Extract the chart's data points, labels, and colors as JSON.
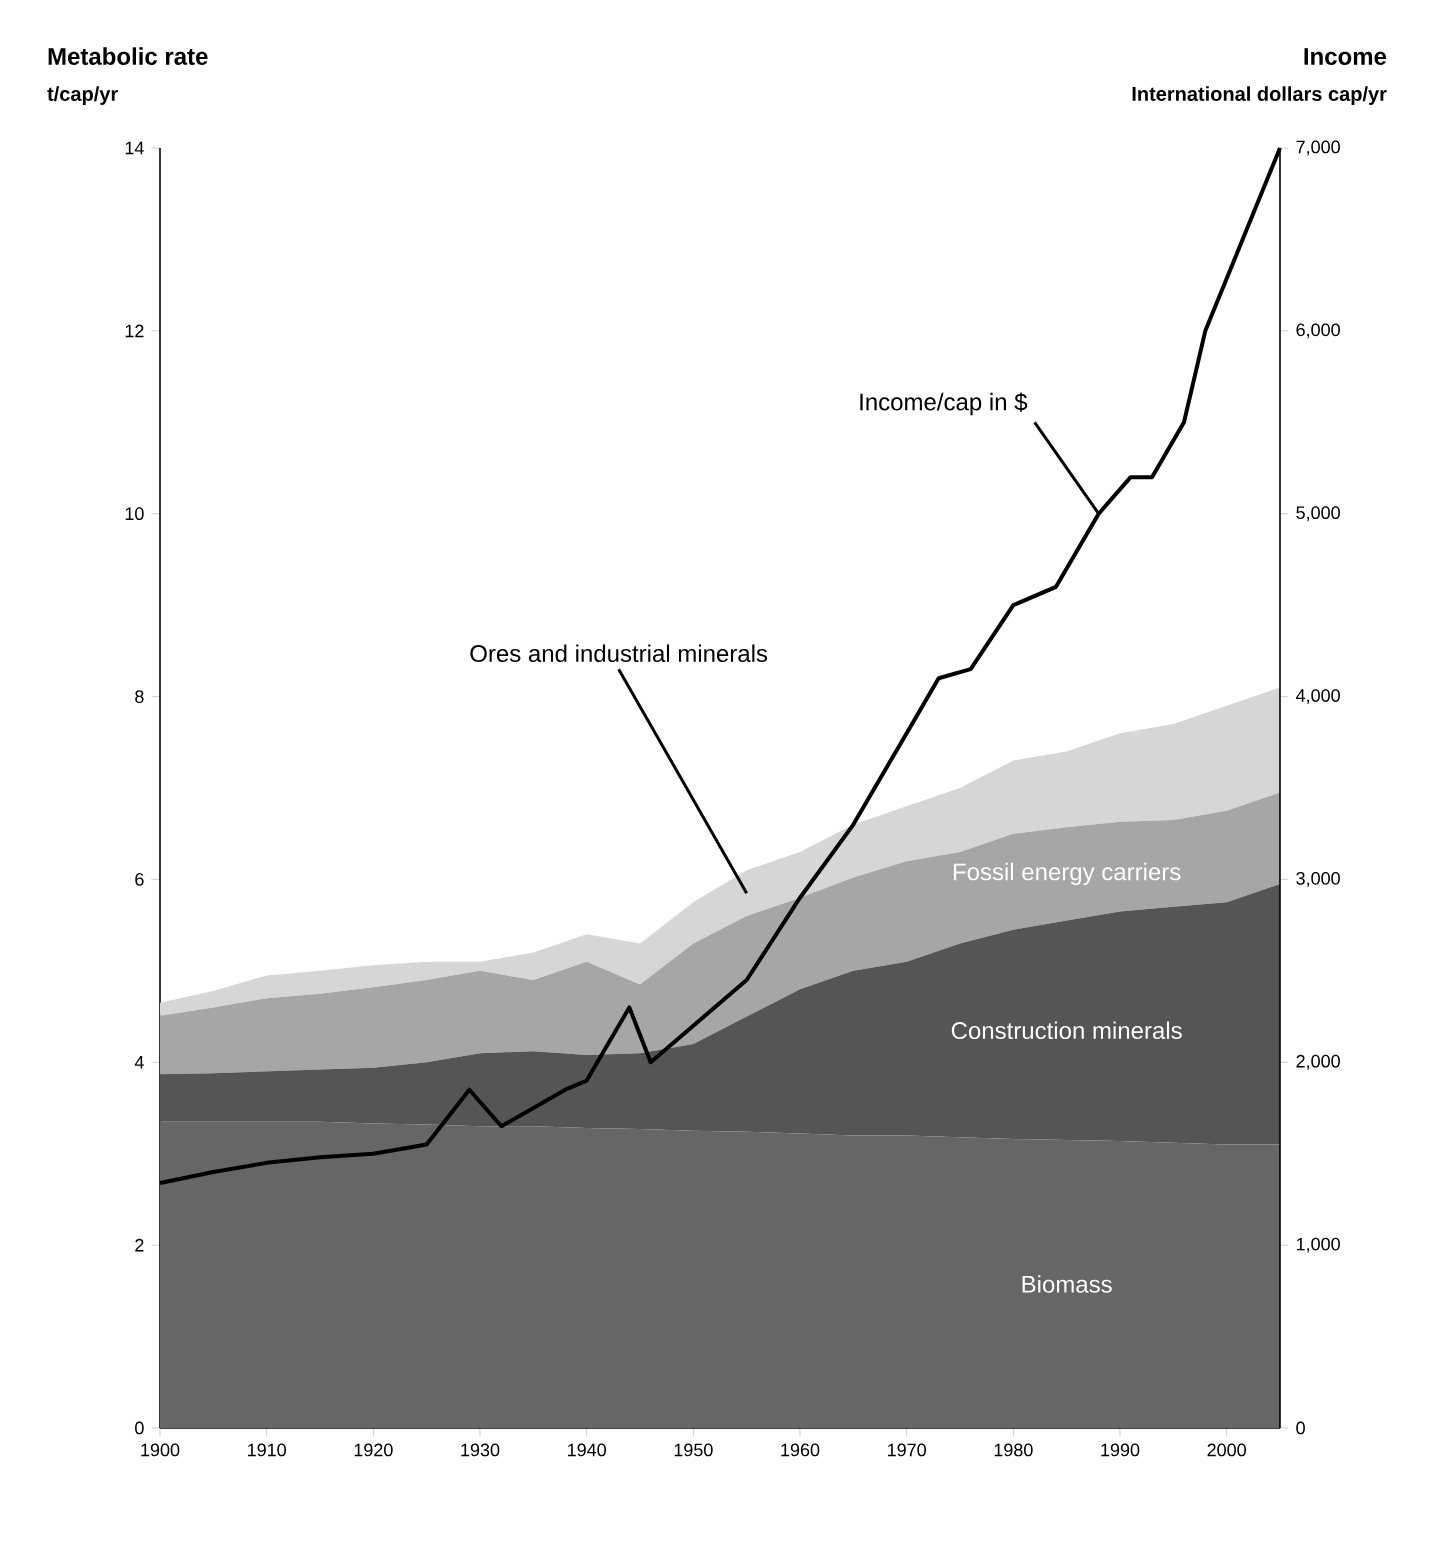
{
  "chart_data": {
    "type": "area",
    "stacked": true,
    "ylabel": "Metabolic rate",
    "y2label": "Income",
    "annotations": [
      "t/cap/yr",
      "International dollars cap/yr"
    ],
    "x": [
      1900,
      1905,
      1910,
      1915,
      1920,
      1925,
      1930,
      1935,
      1940,
      1945,
      1950,
      1955,
      1960,
      1965,
      1970,
      1975,
      1980,
      1985,
      1990,
      1995,
      2000,
      2005
    ],
    "xlim": [
      1900,
      2005
    ],
    "xticks": [
      1900,
      1910,
      1920,
      1930,
      1940,
      1950,
      1960,
      1970,
      1980,
      1990,
      2000
    ],
    "ylim": [
      0,
      14
    ],
    "yticks": [
      0,
      2,
      4,
      6,
      8,
      10,
      12,
      14
    ],
    "y2lim": [
      0,
      7000
    ],
    "y2ticks": [
      0,
      {
        "value": 1000,
        "label": "1,000"
      },
      {
        "value": 2000,
        "label": "2,000"
      },
      {
        "value": 3000,
        "label": "3,000"
      },
      {
        "value": 4000,
        "label": "4,000"
      },
      {
        "value": 5000,
        "label": "5,000"
      },
      {
        "value": 6000,
        "label": "6,000"
      },
      {
        "value": 7000,
        "label": "7,000"
      }
    ],
    "series": [
      {
        "name": "Biomass",
        "color": "#666666",
        "values": [
          3.35,
          3.35,
          3.35,
          3.35,
          3.33,
          3.32,
          3.3,
          3.3,
          3.28,
          3.27,
          3.25,
          3.24,
          3.22,
          3.2,
          3.2,
          3.18,
          3.16,
          3.15,
          3.14,
          3.12,
          3.1,
          3.1
        ]
      },
      {
        "name": "Construction minerals",
        "color": "#555555",
        "values": [
          0.52,
          0.53,
          0.55,
          0.57,
          0.61,
          0.68,
          0.8,
          0.82,
          0.8,
          0.83,
          0.95,
          1.26,
          1.58,
          1.8,
          1.9,
          2.12,
          2.29,
          2.4,
          2.51,
          2.58,
          2.65,
          2.85
        ]
      },
      {
        "name": "Fossil energy carriers",
        "color": "#a6a6a6",
        "values": [
          0.64,
          0.72,
          0.8,
          0.83,
          0.88,
          0.9,
          0.9,
          0.78,
          1.02,
          0.75,
          1.1,
          1.1,
          1.0,
          1.02,
          1.1,
          1.0,
          1.05,
          1.02,
          0.98,
          0.95,
          1.0,
          1.0
        ]
      },
      {
        "name": "Ores and industrial minerals",
        "color": "#d6d6d6",
        "values": [
          0.14,
          0.18,
          0.25,
          0.25,
          0.24,
          0.2,
          0.1,
          0.3,
          0.3,
          0.45,
          0.45,
          0.5,
          0.5,
          0.58,
          0.6,
          0.7,
          0.8,
          0.83,
          0.97,
          1.05,
          1.15,
          1.15
        ]
      },
      {
        "name": "Income/cap in $",
        "type": "line",
        "axis": "y2",
        "color": "#000000",
        "x": [
          1900,
          1905,
          1910,
          1915,
          1920,
          1925,
          1929,
          1932,
          1938,
          1940,
          1944,
          1946,
          1950,
          1955,
          1960,
          1965,
          1970,
          1973,
          1976,
          1980,
          1984,
          1988,
          1991,
          1993,
          1996,
          1998,
          2005
        ],
        "values": [
          1340,
          1400,
          1450,
          1480,
          1500,
          1550,
          1850,
          1650,
          1850,
          1900,
          2300,
          2000,
          2200,
          2450,
          2900,
          3300,
          3800,
          4100,
          4150,
          4500,
          4600,
          5000,
          5200,
          5200,
          5500,
          6000,
          7000
        ]
      }
    ]
  }
}
